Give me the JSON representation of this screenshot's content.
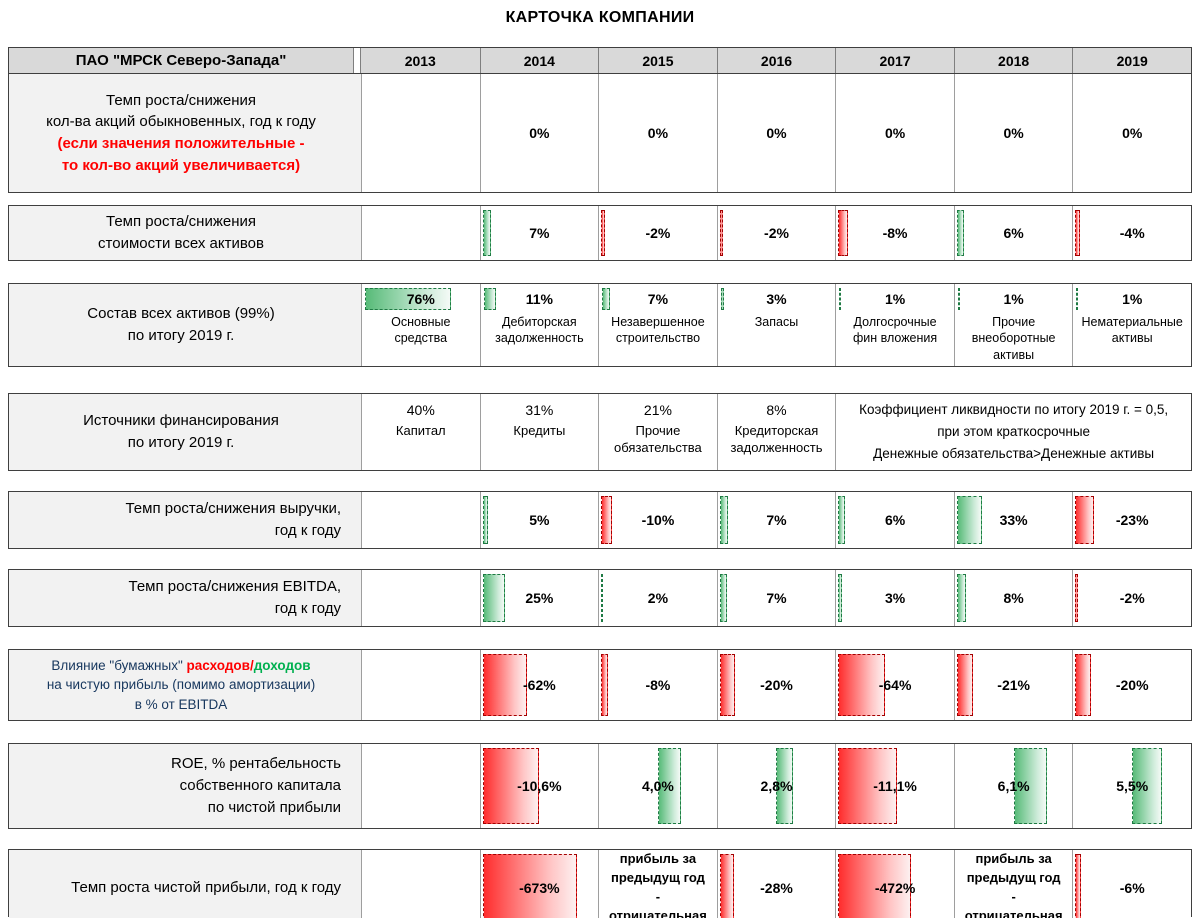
{
  "title": "КАРТОЧКА КОМПАНИИ",
  "header": {
    "company": "ПАО \"МРСК Северо-Запада\"",
    "years": [
      "2013",
      "2014",
      "2015",
      "2016",
      "2017",
      "2018",
      "2019"
    ]
  },
  "colors": {
    "bar_positive": "#57bb78",
    "bar_negative": "#ff2d2d",
    "note_red": "#ff0000",
    "note_green": "#00b050",
    "header_bg": "#d9d9d9",
    "label_bg": "#f2f2f2"
  },
  "rows": {
    "shares": {
      "label1": "Темп роста/снижения",
      "label2": "кол-ва акций обыкновенных,  год к году",
      "note1": "(если значения положительные -",
      "note2": "то кол-во акций увеличивается)",
      "values": [
        "",
        "0%",
        "0%",
        "0%",
        "0%",
        "0%",
        "0%"
      ]
    },
    "assets_growth": {
      "label1": "Темп роста/снижения",
      "label2": "стоимости всех активов",
      "cells": [
        {
          "text": ""
        },
        {
          "text": "7%",
          "bar": 7,
          "color": "g"
        },
        {
          "text": "-2%",
          "bar": 3,
          "color": "r"
        },
        {
          "text": "-2%",
          "bar": 3,
          "color": "r"
        },
        {
          "text": "-8%",
          "bar": 8,
          "color": "r"
        },
        {
          "text": "6%",
          "bar": 6,
          "color": "g"
        },
        {
          "text": "-4%",
          "bar": 4,
          "color": "r"
        }
      ]
    },
    "assets_mix": {
      "label1": "Состав всех активов (99%)",
      "label2": "по итогу 2019 г.",
      "cells": [
        {
          "pct": "76%",
          "bar": 76,
          "color": "g",
          "name": "Основные средства"
        },
        {
          "pct": "11%",
          "bar": 11,
          "color": "g",
          "name": "Дебиторская задолженность"
        },
        {
          "pct": "7%",
          "bar": 7,
          "color": "g",
          "name": "Незавершенное строительство"
        },
        {
          "pct": "3%",
          "bar": 3,
          "color": "g",
          "name": "Запасы"
        },
        {
          "pct": "1%",
          "bar": 1.5,
          "color": "g",
          "name": "Долгосрочные фин вложения"
        },
        {
          "pct": "1%",
          "bar": 1.5,
          "color": "g",
          "name": "Прочие внеоборотные активы"
        },
        {
          "pct": "1%",
          "bar": 1.5,
          "color": "g",
          "name": "Нематериальные активы"
        }
      ]
    },
    "financing": {
      "label1": "Источники финансирования",
      "label2": "по итогу 2019 г.",
      "cells": [
        {
          "pct": "40%",
          "name": "Капитал"
        },
        {
          "pct": "31%",
          "name": "Кредиты"
        },
        {
          "pct": "21%",
          "name": "Прочие обязательства"
        },
        {
          "pct": "8%",
          "name": "Кредиторская задолженность"
        }
      ],
      "liquidity_note": [
        "Коэффициент ликвидности по итогу 2019 г. = 0,5,",
        "при этом краткосрочные",
        "Денежные обязательства>Денежные активы"
      ]
    },
    "revenue": {
      "label1": "Темп роста/снижения выручки,",
      "label2": "год к году",
      "cells": [
        {
          "text": ""
        },
        {
          "text": "5%",
          "bar": 5,
          "color": "g"
        },
        {
          "text": "-10%",
          "bar": 9,
          "color": "r"
        },
        {
          "text": "7%",
          "bar": 7,
          "color": "g"
        },
        {
          "text": "6%",
          "bar": 6,
          "color": "g"
        },
        {
          "text": "33%",
          "bar": 21,
          "color": "g"
        },
        {
          "text": "-23%",
          "bar": 16,
          "color": "r"
        }
      ]
    },
    "ebitda": {
      "label1": "Темп роста/снижения EBITDA,",
      "label2": "год к году",
      "cells": [
        {
          "text": ""
        },
        {
          "text": "25%",
          "bar": 19,
          "color": "g"
        },
        {
          "text": "2%",
          "bar": 2,
          "color": "g"
        },
        {
          "text": "7%",
          "bar": 6,
          "color": "g"
        },
        {
          "text": "3%",
          "bar": 3,
          "color": "g"
        },
        {
          "text": "8%",
          "bar": 8,
          "color": "g"
        },
        {
          "text": "-2%",
          "bar": 2,
          "color": "r"
        }
      ]
    },
    "paper": {
      "label1_pre": "Влияние \"бумажных\" ",
      "label1_red": "расходов",
      "label1_slash": "/",
      "label1_green": "доходов",
      "label2": "на чистую прибыль (помимо амортизации)",
      "label3": "в % от EBITDA",
      "cells": [
        {
          "text": ""
        },
        {
          "text": "-62%",
          "bar": 38,
          "color": "r"
        },
        {
          "text": "-8%",
          "bar": 6,
          "color": "r"
        },
        {
          "text": "-20%",
          "bar": 13,
          "color": "r"
        },
        {
          "text": "-64%",
          "bar": 40,
          "color": "r"
        },
        {
          "text": "-21%",
          "bar": 14,
          "color": "r"
        },
        {
          "text": "-20%",
          "bar": 13,
          "color": "r"
        }
      ]
    },
    "roe": {
      "label1": "ROE, % рентабельность",
      "label2": "собственного капитала",
      "label3": "по чистой прибыли",
      "cells": [
        {
          "text": ""
        },
        {
          "text": "-10,6%",
          "bar": 48,
          "color": "r"
        },
        {
          "text": "4,0%",
          "bar": 20,
          "color": "g",
          "align": "mid"
        },
        {
          "text": "2,8%",
          "bar": 14,
          "color": "g",
          "align": "mid"
        },
        {
          "text": "-11,1%",
          "bar": 50,
          "color": "r"
        },
        {
          "text": "6,1%",
          "bar": 28,
          "color": "g",
          "align": "mid"
        },
        {
          "text": "5,5%",
          "bar": 25,
          "color": "g",
          "align": "mid"
        }
      ]
    },
    "net_profit": {
      "label1": "Темп роста чистой прибыли, год к году",
      "cells": [
        {
          "text": ""
        },
        {
          "text": "-673%",
          "bar": 80,
          "color": "r"
        },
        {
          "note": "прибыль за предыдущ год - отрицательная"
        },
        {
          "text": "-28%",
          "bar": 12,
          "color": "r"
        },
        {
          "text": "-472%",
          "bar": 62,
          "color": "r"
        },
        {
          "note": "прибыль за предыдущ год - отрицательная"
        },
        {
          "text": "-6%",
          "bar": 5,
          "color": "r"
        }
      ]
    }
  },
  "chart_data": [
    {
      "type": "bar",
      "title": "Темп роста/снижения кол-ва акций обыкновенных, год к году",
      "categories": [
        "2014",
        "2015",
        "2016",
        "2017",
        "2018",
        "2019"
      ],
      "values": [
        0,
        0,
        0,
        0,
        0,
        0
      ],
      "unit": "%",
      "note": "(если значения положительные - то кол-во акций увеличивается)"
    },
    {
      "type": "bar",
      "title": "Темп роста/снижения стоимости всех активов",
      "categories": [
        "2014",
        "2015",
        "2016",
        "2017",
        "2018",
        "2019"
      ],
      "values": [
        7,
        -2,
        -2,
        -8,
        6,
        -4
      ],
      "unit": "%"
    },
    {
      "type": "bar",
      "title": "Состав всех активов (99%) по итогу 2019 г.",
      "categories": [
        "Основные средства",
        "Дебиторская задолженность",
        "Незавершенное строительство",
        "Запасы",
        "Долгосрочные фин вложения",
        "Прочие внеоборотные активы",
        "Нематериальные активы"
      ],
      "values": [
        76,
        11,
        7,
        3,
        1,
        1,
        1
      ],
      "unit": "%"
    },
    {
      "type": "bar",
      "title": "Источники финансирования по итогу 2019 г.",
      "categories": [
        "Капитал",
        "Кредиты",
        "Прочие обязательства",
        "Кредиторская задолженность"
      ],
      "values": [
        40,
        31,
        21,
        8
      ],
      "unit": "%",
      "annotation": "Коэффициент ликвидности по итогу 2019 г. = 0,5, при этом краткосрочные Денежные обязательства>Денежные активы"
    },
    {
      "type": "bar",
      "title": "Темп роста/снижения выручки, год к году",
      "categories": [
        "2014",
        "2015",
        "2016",
        "2017",
        "2018",
        "2019"
      ],
      "values": [
        5,
        -10,
        7,
        6,
        33,
        -23
      ],
      "unit": "%"
    },
    {
      "type": "bar",
      "title": "Темп роста/снижения EBITDA, год к году",
      "categories": [
        "2014",
        "2015",
        "2016",
        "2017",
        "2018",
        "2019"
      ],
      "values": [
        25,
        2,
        7,
        3,
        8,
        -2
      ],
      "unit": "%"
    },
    {
      "type": "bar",
      "title": "Влияние \"бумажных\" расходов/доходов на чистую прибыль (помимо амортизации) в % от EBITDA",
      "categories": [
        "2014",
        "2015",
        "2016",
        "2017",
        "2018",
        "2019"
      ],
      "values": [
        -62,
        -8,
        -20,
        -64,
        -21,
        -20
      ],
      "unit": "%"
    },
    {
      "type": "bar",
      "title": "ROE, % рентабельность собственного капитала по чистой прибыли",
      "categories": [
        "2014",
        "2015",
        "2016",
        "2017",
        "2018",
        "2019"
      ],
      "values": [
        -10.6,
        4.0,
        2.8,
        -11.1,
        6.1,
        5.5
      ],
      "unit": "%"
    },
    {
      "type": "bar",
      "title": "Темп роста чистой прибыли, год к году",
      "categories": [
        "2014",
        "2015",
        "2016",
        "2017",
        "2018",
        "2019"
      ],
      "values": [
        -673,
        null,
        -28,
        -472,
        null,
        -6
      ],
      "unit": "%",
      "annotations": [
        "2015: прибыль за предыдущ год - отрицательная",
        "2018: прибыль за предыдущ год - отрицательная"
      ]
    }
  ]
}
